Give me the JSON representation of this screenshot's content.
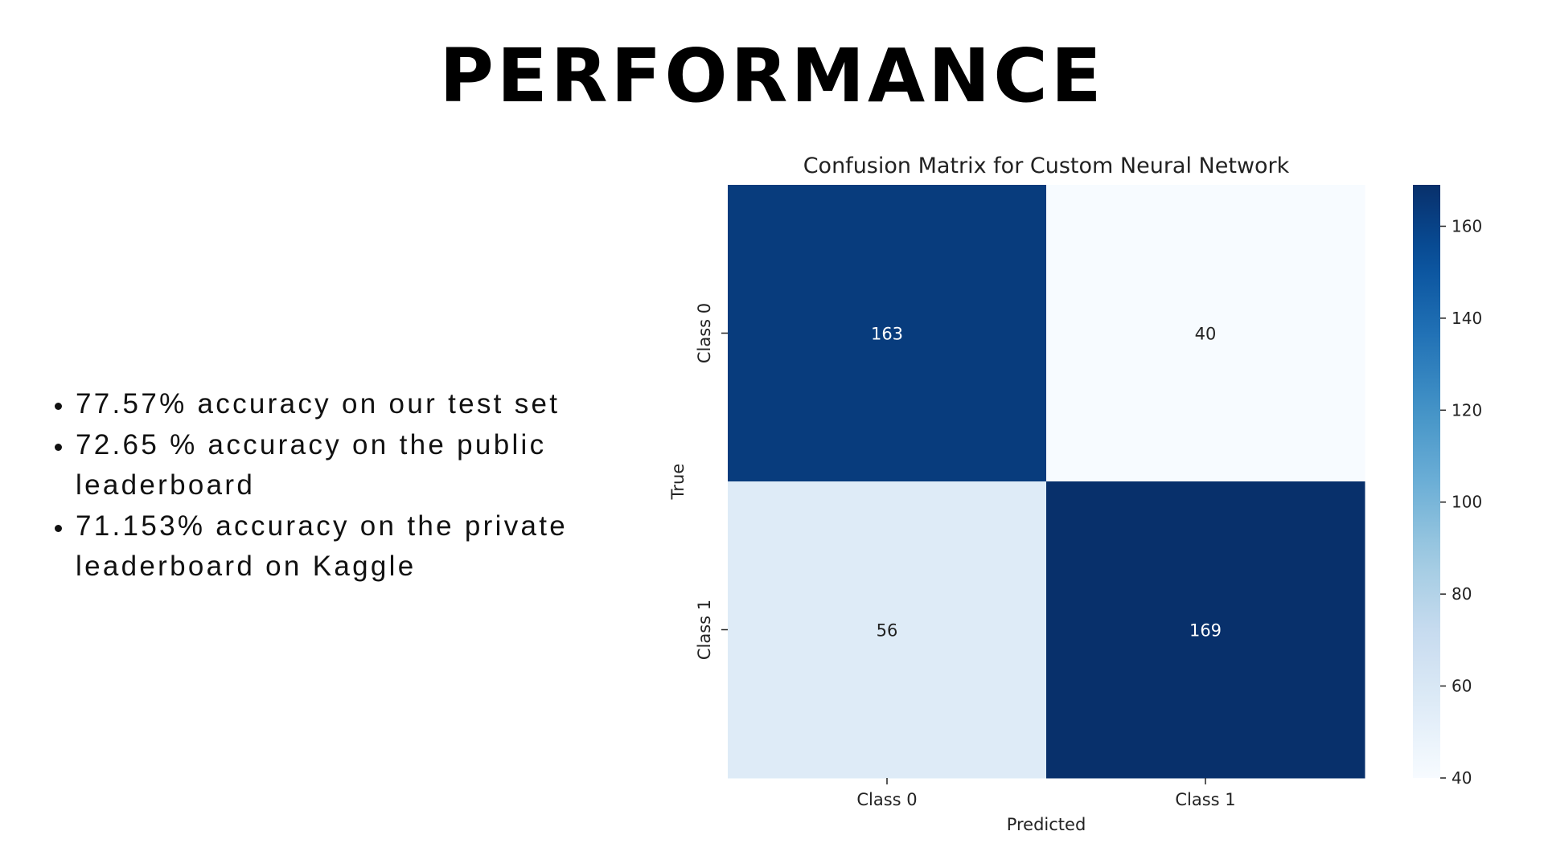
{
  "slide": {
    "title": "PERFORMANCE",
    "bullets": [
      "77.57% accuracy on our test set",
      "72.65 % accuracy on the public leaderboard",
      "71.153% accuracy on the private leaderboard on Kaggle"
    ]
  },
  "colors": {
    "title": "#000000",
    "text": "#111111",
    "cmap_low": "#f7fbff",
    "cmap_high": "#08306b"
  },
  "chart_data": {
    "type": "heatmap",
    "title": "Confusion Matrix for Custom Neural Network",
    "xlabel": "Predicted",
    "ylabel": "True",
    "x_categories": [
      "Class 0",
      "Class 1"
    ],
    "y_categories": [
      "Class 0",
      "Class 1"
    ],
    "values": [
      [
        163,
        40
      ],
      [
        56,
        169
      ]
    ],
    "colorbar": {
      "range": [
        40,
        169
      ],
      "ticks": [
        40,
        60,
        80,
        100,
        120,
        140,
        160
      ],
      "colormap": "Blues"
    },
    "grid": false,
    "legend": "colorbar-right"
  }
}
